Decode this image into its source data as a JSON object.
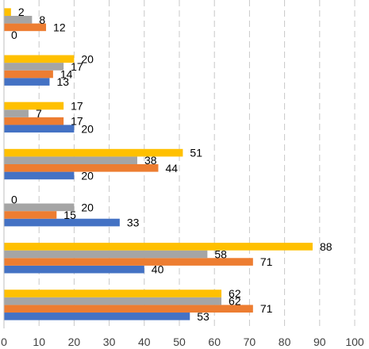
{
  "chart_data": {
    "type": "bar",
    "orientation": "horizontal",
    "xlim": [
      0,
      100
    ],
    "xticks": [
      0,
      10,
      20,
      30,
      40,
      50,
      60,
      70,
      80,
      90,
      100
    ],
    "grid": "vertical dashed",
    "legend": "none",
    "groups": [
      {
        "values": [
          0,
          12,
          8,
          2
        ]
      },
      {
        "values": [
          13,
          14,
          17,
          20
        ]
      },
      {
        "values": [
          20,
          17,
          7,
          17
        ]
      },
      {
        "values": [
          20,
          44,
          38,
          51
        ]
      },
      {
        "values": [
          33,
          15,
          20,
          0
        ]
      },
      {
        "values": [
          40,
          71,
          58,
          88
        ]
      },
      {
        "values": [
          53,
          71,
          62,
          62
        ]
      }
    ],
    "series_colors": [
      "#4472C4",
      "#ED7D31",
      "#A5A5A5",
      "#FFC000"
    ]
  }
}
